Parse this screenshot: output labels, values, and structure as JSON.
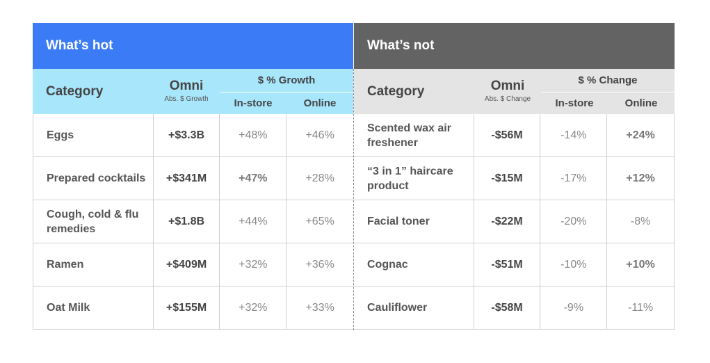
{
  "hot": {
    "title": "What’s hot",
    "header": {
      "category": "Category",
      "omni": "Omni",
      "omni_sub": "Abs. $ Growth",
      "group": "$ % Growth",
      "instore": "In-store",
      "online": "Online"
    },
    "rows": [
      {
        "category": "Eggs",
        "omni": "+$3.3B",
        "instore": "+48%",
        "online": "+46%"
      },
      {
        "category": "Prepared cocktails",
        "omni": "+$341M",
        "instore": "+47%",
        "online": "+28%"
      },
      {
        "category": "Cough, cold & flu remedies",
        "omni": "+$1.8B",
        "instore": "+44%",
        "online": "+65%"
      },
      {
        "category": "Ramen",
        "omni": "+$409M",
        "instore": "+32%",
        "online": "+36%"
      },
      {
        "category": "Oat Milk",
        "omni": "+$155M",
        "instore": "+32%",
        "online": "+33%"
      }
    ]
  },
  "not": {
    "title": "What’s not",
    "header": {
      "category": "Category",
      "omni": "Omni",
      "omni_sub": "Abs. $ Change",
      "group": "$ % Change",
      "instore": "In-store",
      "online": "Online"
    },
    "rows": [
      {
        "category": "Scented wax air freshener",
        "omni": "-$56M",
        "instore": "-14%",
        "online": "+24%"
      },
      {
        "category": "“3 in 1” haircare product",
        "omni": "-$15M",
        "instore": "-17%",
        "online": "+12%"
      },
      {
        "category": "Facial toner",
        "omni": "-$22M",
        "instore": "-20%",
        "online": "-8%"
      },
      {
        "category": "Cognac",
        "omni": "-$51M",
        "instore": "-10%",
        "online": "+10%"
      },
      {
        "category": "Cauliflower",
        "omni": "-$58M",
        "instore": "-9%",
        "online": "-11%"
      }
    ]
  },
  "colors": {
    "hot_title_bg": "#3b7bf6",
    "hot_header_bg": "#a8e6fb",
    "not_title_bg": "#636363",
    "not_header_bg": "#e4e4e4"
  }
}
